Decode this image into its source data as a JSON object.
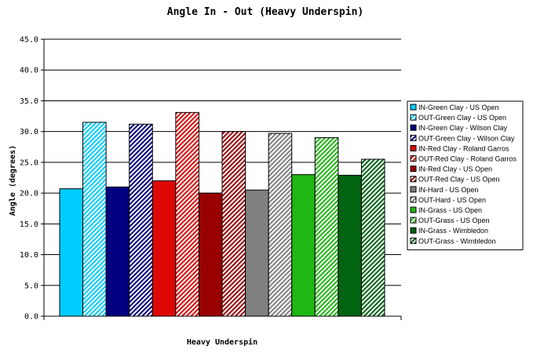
{
  "chart_data": {
    "type": "bar",
    "title": "Angle In - Out (Heavy Underspin)",
    "xlabel": "Heavy Underspin",
    "ylabel": "Angle (degrees)",
    "ylim": [
      0,
      45
    ],
    "yticks": [
      "0.0",
      "5.0",
      "10.0",
      "15.0",
      "20.0",
      "25.0",
      "30.0",
      "35.0",
      "40.0",
      "45.0"
    ],
    "grid": true,
    "legend_position": "right",
    "series": [
      {
        "name": "IN-Green Clay - US Open",
        "values": [
          20.7
        ],
        "color": "#00CCFF",
        "pattern": "solid"
      },
      {
        "name": "OUT-Green Clay - US Open",
        "values": [
          31.5
        ],
        "color": "#00CCFF",
        "pattern": "hatch"
      },
      {
        "name": "IN-Green Clay - Wilson Clay",
        "values": [
          21.0
        ],
        "color": "#000080",
        "pattern": "solid"
      },
      {
        "name": "OUT-Green Clay - Wilson Clay",
        "values": [
          31.2
        ],
        "color": "#000080",
        "pattern": "hatch"
      },
      {
        "name": "IN-Red Clay - Roland Garros",
        "values": [
          22.0
        ],
        "color": "#DD0806",
        "pattern": "solid"
      },
      {
        "name": "OUT-Red Clay - Roland Garros",
        "values": [
          33.1
        ],
        "color": "#DD0806",
        "pattern": "hatch"
      },
      {
        "name": "IN-Red Clay - US Open",
        "values": [
          20.0
        ],
        "color": "#990000",
        "pattern": "solid"
      },
      {
        "name": "OUT-Red Clay - US Open",
        "values": [
          30.0
        ],
        "color": "#990000",
        "pattern": "hatch"
      },
      {
        "name": "IN-Hard - US Open",
        "values": [
          20.5
        ],
        "color": "#808080",
        "pattern": "solid"
      },
      {
        "name": "OUT-Hard - US Open",
        "values": [
          29.7
        ],
        "color": "#808080",
        "pattern": "hatch"
      },
      {
        "name": "IN-Grass - US Open",
        "values": [
          23.0
        ],
        "color": "#1FB714",
        "pattern": "solid"
      },
      {
        "name": "OUT-Grass - US Open",
        "values": [
          29.0
        ],
        "color": "#1FB714",
        "pattern": "hatch"
      },
      {
        "name": "IN-Grass - Wimbledon",
        "values": [
          22.9
        ],
        "color": "#006411",
        "pattern": "solid"
      },
      {
        "name": "OUT-Grass - Wimbledon",
        "values": [
          25.5
        ],
        "color": "#006411",
        "pattern": "hatch"
      }
    ]
  }
}
